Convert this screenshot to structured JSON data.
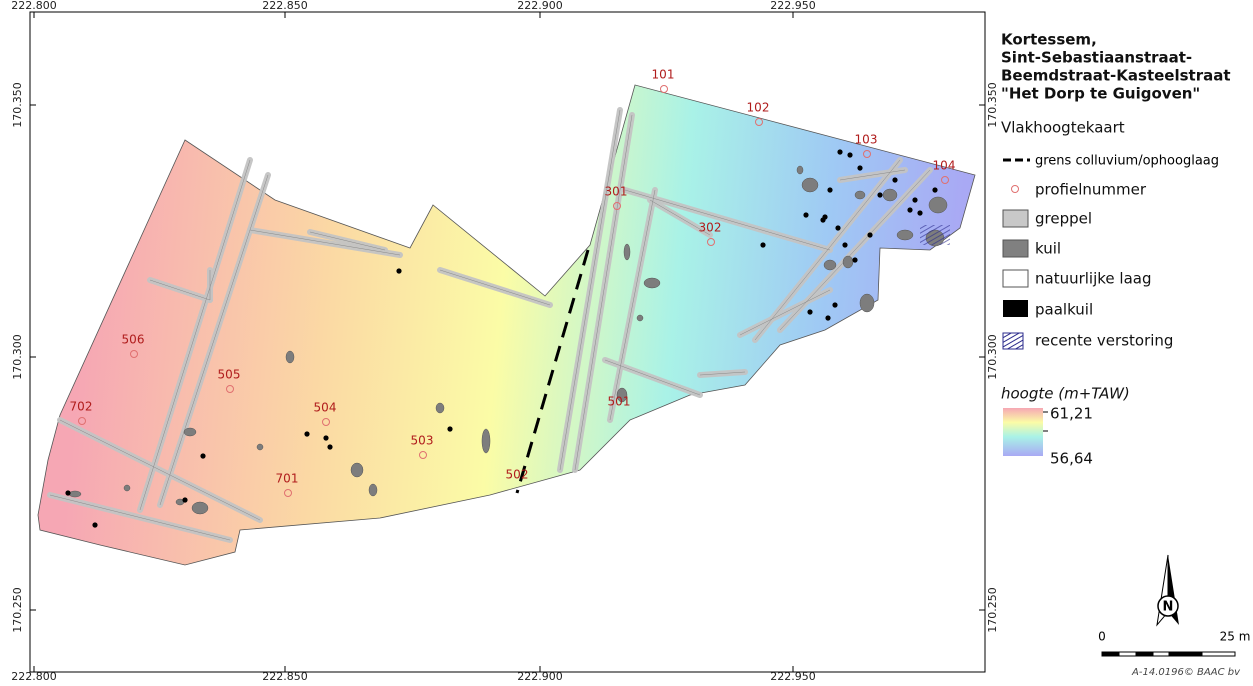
{
  "map": {
    "x_axis_labels": [
      "222.800",
      "222.850",
      "222.900",
      "222.950"
    ],
    "y_axis_labels": [
      "170.350",
      "170.300",
      "170.250"
    ],
    "profile_labels": [
      "101",
      "102",
      "103",
      "104",
      "301",
      "302",
      "501",
      "502",
      "503",
      "504",
      "505",
      "506",
      "701",
      "702"
    ]
  },
  "legend": {
    "title": [
      "Kortessem,",
      "Sint-Sebastiaanstraat-",
      "Beemdstraat-Kasteelstraat",
      "\"Het Dorp te Guigoven\""
    ],
    "subtitle": "Vlakhoogtekaart",
    "items": [
      "grens colluvium/ophooglaag",
      "profielnummer",
      "greppel",
      "kuil",
      "natuurlijke laag",
      "paalkuil",
      "recente verstoring"
    ],
    "elevation_title": "hoogte (m+TAW)",
    "elevation_max": "61,21",
    "elevation_min": "56,64"
  },
  "scale": {
    "start": "0",
    "end": "25 m"
  },
  "north": "N",
  "credit": "A-14.0196© BAAC bv"
}
